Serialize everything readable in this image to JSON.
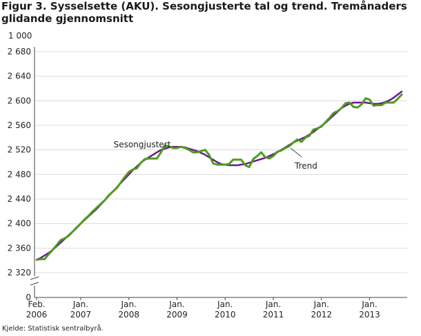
{
  "title": "Figur 3. Sysselsette (AKU).  Sesongjusterte tal og trend. Tremånaders glidande gjennomsnitt",
  "source": "Kjelde: Statistisk sentralbyrå.",
  "colors": {
    "trend": "#6b1a8c",
    "seasonal": "#4e9a1f",
    "grid": "#dcdcdc",
    "axis": "#444444"
  },
  "chart_data": {
    "type": "line",
    "title": "Figur 3. Sysselsette (AKU).  Sesongjusterte tal og trend. Tremånaders glidande gjennomsnitt",
    "ylabel": "1 000",
    "xlabel": "",
    "ylim": [
      2310,
      2680
    ],
    "broken_axis": true,
    "yticks": [
      2320,
      2360,
      2400,
      2440,
      2480,
      2520,
      2560,
      2600,
      2640,
      2680
    ],
    "ytick_labels": [
      "2 320",
      "2 360",
      "2 400",
      "2 440",
      "2 480",
      "2 520",
      "2 560",
      "2 600",
      "2 640",
      "2 680"
    ],
    "y_origin_label": "0",
    "x_start_month_index": 0,
    "x_month_count": 92,
    "xticks": [
      {
        "index": 0,
        "line1": "Feb.",
        "line2": "2006"
      },
      {
        "index": 11,
        "line1": "Jan.",
        "line2": "2007"
      },
      {
        "index": 23,
        "line1": "Jan.",
        "line2": "2008"
      },
      {
        "index": 35,
        "line1": "Jan.",
        "line2": "2009"
      },
      {
        "index": 47,
        "line1": "Jan.",
        "line2": "2010"
      },
      {
        "index": 59,
        "line1": "Jan.",
        "line2": "2011"
      },
      {
        "index": 71,
        "line1": "Jan.",
        "line2": "2012"
      },
      {
        "index": 83,
        "line1": "Jan.",
        "line2": "2013"
      }
    ],
    "series": [
      {
        "name": "Sesongjustert",
        "label_anchor_index": 27,
        "values": [
          2341,
          2342,
          2342,
          2350,
          2357,
          2365,
          2373,
          2376,
          2380,
          2387,
          2393,
          2400,
          2407,
          2413,
          2420,
          2426,
          2432,
          2438,
          2446,
          2452,
          2458,
          2467,
          2476,
          2484,
          2488,
          2490,
          2499,
          2505,
          2506,
          2506,
          2506,
          2516,
          2527,
          2526,
          2523,
          2523,
          2525,
          2523,
          2520,
          2516,
          2516,
          2518,
          2520,
          2512,
          2498,
          2496,
          2496,
          2496,
          2497,
          2504,
          2504,
          2504,
          2495,
          2492,
          2505,
          2510,
          2516,
          2508,
          2506,
          2510,
          2517,
          2519,
          2523,
          2526,
          2532,
          2537,
          2533,
          2540,
          2543,
          2553,
          2555,
          2558,
          2565,
          2572,
          2580,
          2583,
          2588,
          2596,
          2597,
          2590,
          2589,
          2594,
          2604,
          2602,
          2592,
          2593,
          2593,
          2597,
          2597,
          2597,
          2603,
          2610
        ]
      },
      {
        "name": "Trend",
        "label_anchor_index": 64,
        "values": [
          2341,
          2344,
          2348,
          2352,
          2357,
          2363,
          2369,
          2375,
          2381,
          2387,
          2394,
          2400,
          2406,
          2412,
          2418,
          2424,
          2431,
          2438,
          2445,
          2452,
          2459,
          2466,
          2473,
          2480,
          2487,
          2493,
          2499,
          2504,
          2508,
          2512,
          2516,
          2520,
          2522,
          2524,
          2525,
          2525,
          2525,
          2524,
          2522,
          2520,
          2518,
          2515,
          2512,
          2508,
          2504,
          2500,
          2497,
          2496,
          2495,
          2495,
          2495,
          2496,
          2497,
          2499,
          2501,
          2503,
          2505,
          2507,
          2510,
          2513,
          2516,
          2520,
          2524,
          2528,
          2532,
          2535,
          2538,
          2541,
          2545,
          2549,
          2554,
          2559,
          2564,
          2570,
          2576,
          2582,
          2588,
          2592,
          2595,
          2597,
          2597,
          2597,
          2597,
          2596,
          2595,
          2595,
          2596,
          2598,
          2601,
          2605,
          2610,
          2615
        ]
      }
    ],
    "end_values_note": "Both series converge to about 2 620 at the last month."
  }
}
